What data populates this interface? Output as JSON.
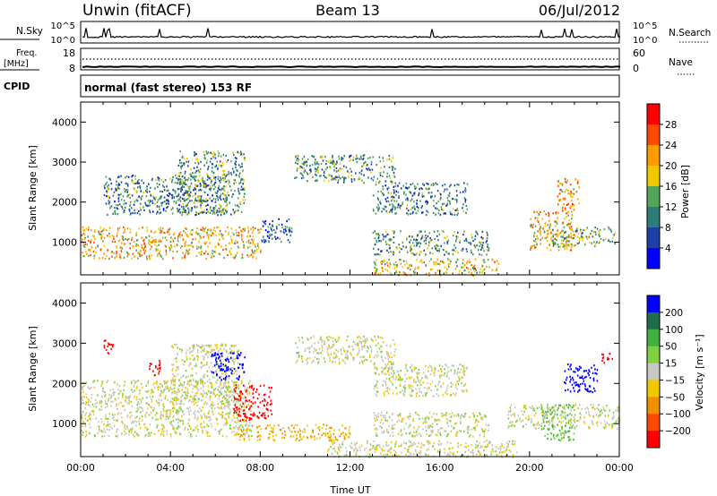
{
  "header": {
    "station": "Unwin (fitACF)",
    "beam": "Beam 13",
    "date": "06/Jul/2012"
  },
  "panels": {
    "nsky": {
      "label": "N.Sky",
      "ticks_left": [
        "10^5",
        "10^0"
      ],
      "ticks_right": [
        "10^5",
        "10^0"
      ],
      "right_label": "N.Search",
      "right_style": "dotted"
    },
    "freq": {
      "label_top": "Freq.",
      "label_unit": "[MHz]",
      "ticks_left": [
        "18",
        "8"
      ],
      "ticks_right": [
        "60",
        "0"
      ],
      "right_label": "Nave",
      "right_style": "dotted"
    },
    "cpid": {
      "label": "CPID",
      "text": "normal (fast stereo) 153 RF"
    }
  },
  "colors": {
    "grey": "#c8c8c0",
    "ground_orange": "#f0a000"
  },
  "chart_data": [
    {
      "type": "heatmap",
      "name": "power",
      "ylabel": "Slant Range [km]",
      "xlim": [
        "00:00",
        "24:00"
      ],
      "ylim": [
        180,
        4500
      ],
      "yticks": [
        "1000",
        "2000",
        "3000",
        "4000"
      ],
      "colorbar": {
        "label": "Power [dB]",
        "ticks": [
          "28",
          "24",
          "20",
          "16",
          "12",
          "8",
          "4"
        ],
        "scale": [
          {
            "v": 30,
            "c": "#ff0000"
          },
          {
            "v": 26,
            "c": "#ff4a00"
          },
          {
            "v": 22,
            "c": "#ff9a00"
          },
          {
            "v": 18,
            "c": "#f0c800"
          },
          {
            "v": 14,
            "c": "#52a55a"
          },
          {
            "v": 10,
            "c": "#2d7d78"
          },
          {
            "v": 6,
            "c": "#1f3fa8"
          },
          {
            "v": 2,
            "c": "#0000ff"
          }
        ]
      },
      "regions": [
        {
          "t0": 0.0,
          "t1": 8.0,
          "r0": 600,
          "r1": 1400,
          "value": 20
        },
        {
          "t0": 1.0,
          "t1": 6.5,
          "r0": 1700,
          "r1": 2700,
          "value": 10
        },
        {
          "t0": 4.3,
          "t1": 7.3,
          "r0": 1700,
          "r1": 3300,
          "value": 12
        },
        {
          "t0": 8.0,
          "t1": 9.4,
          "r0": 1000,
          "r1": 1600,
          "value": 8
        },
        {
          "t0": 9.5,
          "t1": 14.0,
          "r0": 2500,
          "r1": 3200,
          "value": 12
        },
        {
          "t0": 13.0,
          "t1": 17.2,
          "r0": 1700,
          "r1": 2500,
          "value": 10
        },
        {
          "t0": 13.0,
          "t1": 18.2,
          "r0": 700,
          "r1": 1300,
          "value": 12
        },
        {
          "t0": 13.0,
          "t1": 18.6,
          "r0": 180,
          "r1": 600,
          "value": 18
        },
        {
          "t0": 20.0,
          "t1": 22.0,
          "r0": 800,
          "r1": 1800,
          "value": 20
        },
        {
          "t0": 21.0,
          "t1": 23.8,
          "r0": 900,
          "r1": 1400,
          "value": 14
        },
        {
          "t0": 21.2,
          "t1": 22.2,
          "r0": 1800,
          "r1": 2600,
          "value": 22
        }
      ]
    },
    {
      "type": "heatmap",
      "name": "velocity",
      "ylabel": "Slant Range [km]",
      "xlabel": "Time UT",
      "xlim": [
        "00:00",
        "24:00"
      ],
      "ylim": [
        180,
        4500
      ],
      "xticks": [
        "00:00",
        "04:00",
        "08:00",
        "12:00",
        "16:00",
        "20:00",
        "00:00"
      ],
      "yticks": [
        "1000",
        "2000",
        "3000",
        "4000"
      ],
      "colorbar": {
        "label": "Velocity [m s⁻¹]",
        "ticks": [
          "200",
          "100",
          "50",
          "15",
          "−15",
          "−50",
          "−100",
          "−200"
        ],
        "scale": [
          {
            "v": 250,
            "c": "#0000ff"
          },
          {
            "v": 150,
            "c": "#1f6e4a"
          },
          {
            "v": 75,
            "c": "#40b040"
          },
          {
            "v": 30,
            "c": "#80d040"
          },
          {
            "v": 0,
            "c": "#c8c8c0"
          },
          {
            "v": -30,
            "c": "#f0c800"
          },
          {
            "v": -75,
            "c": "#f09000"
          },
          {
            "v": -150,
            "c": "#ff4a00"
          },
          {
            "v": -250,
            "c": "#ff0000"
          }
        ]
      },
      "regions": [
        {
          "t0": 0.0,
          "t1": 7.6,
          "r0": 700,
          "r1": 2100,
          "value": 0
        },
        {
          "t0": 4.0,
          "t1": 7.0,
          "r0": 1500,
          "r1": 3000,
          "value": 0
        },
        {
          "t0": 6.8,
          "t1": 8.5,
          "r0": 1100,
          "r1": 2000,
          "value": -250
        },
        {
          "t0": 5.8,
          "t1": 7.3,
          "r0": 2100,
          "r1": 2800,
          "value": 250
        },
        {
          "t0": 3.0,
          "t1": 3.6,
          "r0": 2200,
          "r1": 2600,
          "value": -250
        },
        {
          "t0": 1.0,
          "t1": 1.5,
          "r0": 2700,
          "r1": 3100,
          "value": -250
        },
        {
          "t0": 9.5,
          "t1": 14.0,
          "r0": 2500,
          "r1": 3200,
          "value": 0
        },
        {
          "t0": 13.0,
          "t1": 17.2,
          "r0": 1700,
          "r1": 2500,
          "value": 0
        },
        {
          "t0": 13.0,
          "t1": 18.2,
          "r0": 700,
          "r1": 1300,
          "value": 0
        },
        {
          "t0": 11.0,
          "t1": 19.5,
          "r0": 180,
          "r1": 600,
          "value": 0
        },
        {
          "t0": 7.0,
          "t1": 12.0,
          "r0": 600,
          "r1": 1000,
          "value": -50
        },
        {
          "t0": 19.0,
          "t1": 24.0,
          "r0": 900,
          "r1": 1500,
          "value": 0
        },
        {
          "t0": 21.5,
          "t1": 23.0,
          "r0": 1800,
          "r1": 2500,
          "value": 250
        },
        {
          "t0": 20.5,
          "t1": 22.0,
          "r0": 600,
          "r1": 1500,
          "value": 50
        },
        {
          "t0": 23.2,
          "t1": 23.7,
          "r0": 2500,
          "r1": 2800,
          "value": -250
        }
      ]
    }
  ]
}
